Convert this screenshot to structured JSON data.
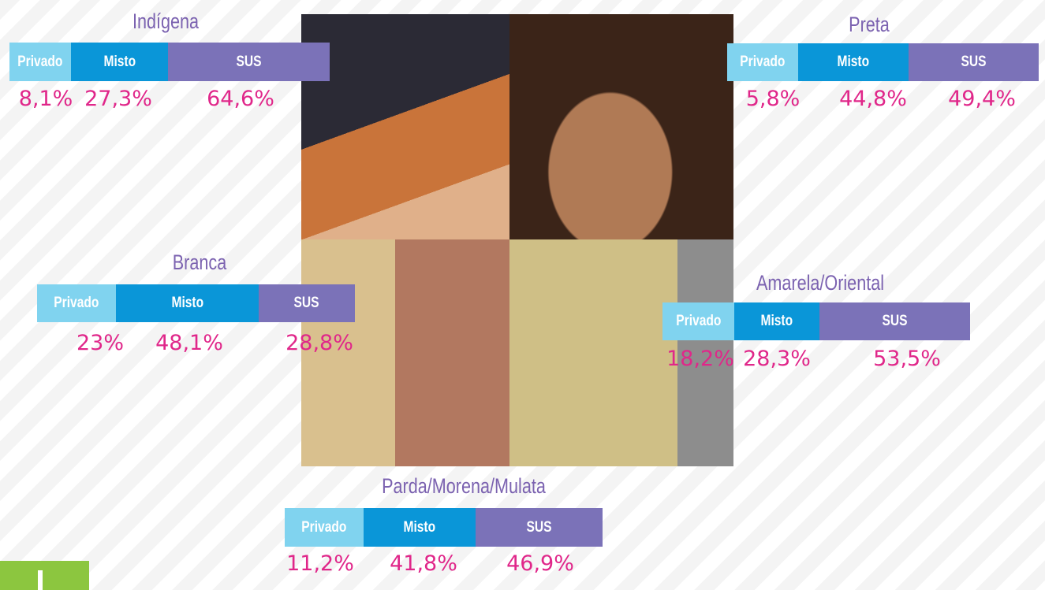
{
  "panels": [
    {
      "title": "Indígena",
      "segments": [
        {
          "label": "Privado",
          "value": "8,1%"
        },
        {
          "label": "Misto",
          "value": "27,3%"
        },
        {
          "label": "SUS",
          "value": "64,6%"
        }
      ]
    },
    {
      "title": "Preta",
      "segments": [
        {
          "label": "Privado",
          "value": "5,8%"
        },
        {
          "label": "Misto",
          "value": "44,8%"
        },
        {
          "label": "SUS",
          "value": "49,4%"
        }
      ]
    },
    {
      "title": "Branca",
      "segments": [
        {
          "label": "Privado",
          "value": "23%"
        },
        {
          "label": "Misto",
          "value": "48,1%"
        },
        {
          "label": "SUS",
          "value": "28,8%"
        }
      ]
    },
    {
      "title": "Amarela/Oriental",
      "segments": [
        {
          "label": "Privado",
          "value": "18,2%"
        },
        {
          "label": "Misto",
          "value": "28,3%"
        },
        {
          "label": "SUS",
          "value": "53,5%"
        }
      ]
    },
    {
      "title": "Parda/Morena/Mulata",
      "segments": [
        {
          "label": "Privado",
          "value": "11,2%"
        },
        {
          "label": "Misto",
          "value": "41,8%"
        },
        {
          "label": "SUS",
          "value": "46,9%"
        }
      ]
    }
  ]
}
